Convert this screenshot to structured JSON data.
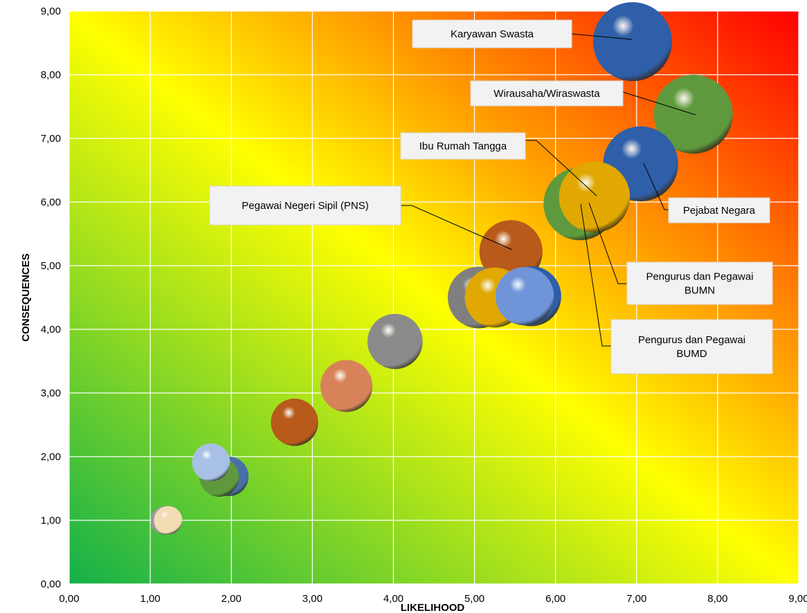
{
  "colors": {
    "grad_bottom_left": "#13b04a",
    "grad_mid": "#ffff00",
    "grad_top_right": "#ff0000",
    "grid": "#ffffff",
    "label_box": "#f2f2f2",
    "leader_line": "#000000"
  },
  "chart_data": {
    "type": "bubble",
    "xlabel": "LIKELIHOOD",
    "ylabel": "CONSEQUENCES",
    "xlim": [
      0,
      9
    ],
    "ylim": [
      0,
      9
    ],
    "grid": true,
    "x_ticks": [
      "0,00",
      "1,00",
      "2,00",
      "3,00",
      "4,00",
      "5,00",
      "6,00",
      "7,00",
      "8,00",
      "9,00"
    ],
    "y_ticks": [
      "0,00",
      "1,00",
      "2,00",
      "3,00",
      "4,00",
      "5,00",
      "6,00",
      "7,00",
      "8,00",
      "9,00"
    ],
    "points": [
      {
        "name": "Karyawan Swasta",
        "x": 6.95,
        "y": 8.52,
        "size": 1.0,
        "color": "#2e5fa8"
      },
      {
        "name": "Wirausaha/Wiraswasta",
        "x": 7.7,
        "y": 7.38,
        "size": 1.0,
        "color": "#5e9a3d"
      },
      {
        "name": "Pejabat Negara",
        "x": 7.05,
        "y": 6.6,
        "size": 0.95,
        "color": "#2e5fa8"
      },
      {
        "name": "",
        "x": 6.3,
        "y": 5.97,
        "size": 0.92,
        "color": "#5e9a3d"
      },
      {
        "name": "Ibu Rumah Tangga",
        "x": 6.48,
        "y": 6.08,
        "size": 0.9,
        "color": "#e0a800"
      },
      {
        "name": "Pegawai Negeri Sipil (PNS)",
        "x": 5.45,
        "y": 5.22,
        "size": 0.8,
        "color": "#b85a1a"
      },
      {
        "name": "",
        "x": 5.05,
        "y": 4.5,
        "size": 0.78,
        "color": "#7f7f7f"
      },
      {
        "name": "",
        "x": 5.25,
        "y": 4.5,
        "size": 0.76,
        "color": "#e0a800"
      },
      {
        "name": "",
        "x": 5.7,
        "y": 4.52,
        "size": 0.76,
        "color": "#2e5fa8"
      },
      {
        "name": "",
        "x": 5.62,
        "y": 4.52,
        "size": 0.74,
        "color": "#6f95d8"
      },
      {
        "name": "",
        "x": 4.02,
        "y": 3.81,
        "size": 0.7,
        "color": "#8a8a8a"
      },
      {
        "name": "",
        "x": 3.42,
        "y": 3.11,
        "size": 0.66,
        "color": "#d8825a"
      },
      {
        "name": "",
        "x": 2.78,
        "y": 2.54,
        "size": 0.6,
        "color": "#b85a1a"
      },
      {
        "name": "",
        "x": 1.97,
        "y": 1.69,
        "size": 0.5,
        "color": "#4a6fa8"
      },
      {
        "name": "",
        "x": 1.85,
        "y": 1.68,
        "size": 0.5,
        "color": "#5e9a3d"
      },
      {
        "name": "",
        "x": 1.75,
        "y": 1.91,
        "size": 0.48,
        "color": "#a9c0e6"
      },
      {
        "name": "",
        "x": 1.18,
        "y": 1.0,
        "size": 0.36,
        "color": "#9a9a9a"
      },
      {
        "name": "",
        "x": 1.22,
        "y": 1.0,
        "size": 0.36,
        "color": "#f2dcb4"
      }
    ],
    "annotations": [
      {
        "text": [
          "Karyawan Swasta"
        ],
        "x": 6.95,
        "y": 8.52
      },
      {
        "text": [
          "Wirausaha/Wiraswasta"
        ],
        "x": 7.7,
        "y": 7.38
      },
      {
        "text": [
          "Ibu Rumah Tangga"
        ],
        "x": 6.48,
        "y": 6.08
      },
      {
        "text": [
          "Pegawai Negeri Sipil (PNS)"
        ],
        "x": 5.45,
        "y": 5.22
      },
      {
        "text": [
          "Pejabat Negara"
        ],
        "x": 7.05,
        "y": 6.6
      },
      {
        "text": [
          "Pengurus dan Pegawai",
          "BUMN"
        ],
        "x": 6.48,
        "y": 6.08
      },
      {
        "text": [
          "Pengurus dan Pegawai",
          "BUMD"
        ],
        "x": 6.3,
        "y": 5.97
      }
    ]
  }
}
